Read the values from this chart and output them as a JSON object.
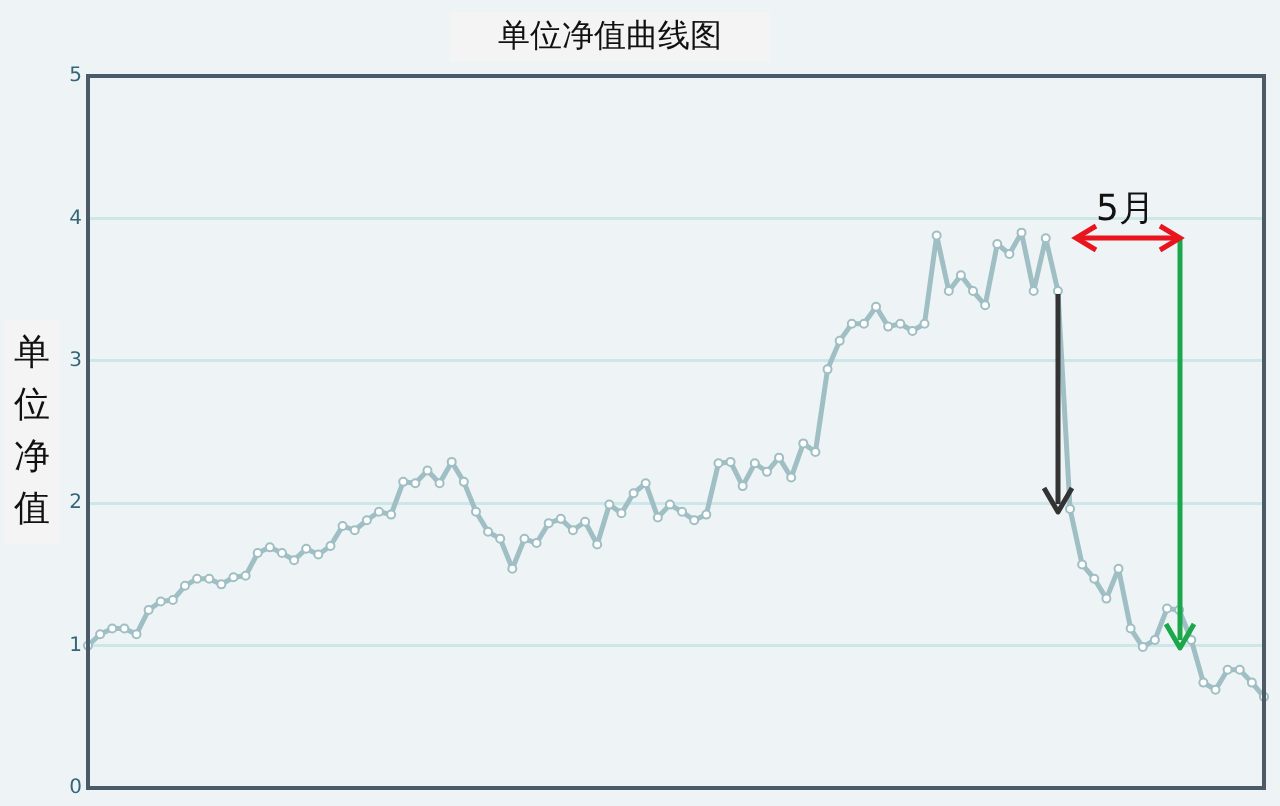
{
  "chart_data": {
    "type": "line",
    "title": "单位净值曲线图",
    "ylabel": "单位净值",
    "annotations": [
      "5月"
    ],
    "categories": [
      null,
      null,
      null,
      null,
      null,
      null,
      null,
      null,
      null,
      null,
      null,
      null,
      null,
      null,
      null,
      null,
      null,
      null,
      null,
      null,
      null,
      null,
      null,
      null,
      null,
      null,
      null,
      null,
      null,
      null,
      null,
      null,
      null,
      null,
      null,
      null,
      null,
      null,
      null,
      null,
      null,
      null,
      null,
      null,
      null,
      null,
      null,
      null,
      null,
      null,
      null,
      null,
      null,
      null,
      null,
      null,
      null,
      null,
      null,
      null,
      null,
      null,
      null,
      null,
      null,
      null,
      null,
      null,
      null,
      null,
      null,
      null,
      null,
      null,
      null,
      null,
      null,
      null,
      null,
      null,
      null,
      null,
      null,
      null,
      null,
      null,
      null,
      null,
      null,
      null,
      null,
      null,
      null,
      null,
      null,
      null,
      null,
      null
    ],
    "series": [
      {
        "color": "#9fbfc4",
        "values": [
          1.0,
          1.08,
          1.12,
          1.12,
          1.08,
          1.25,
          1.31,
          1.32,
          1.42,
          1.47,
          1.47,
          1.43,
          1.48,
          1.49,
          1.65,
          1.69,
          1.65,
          1.6,
          1.68,
          1.64,
          1.7,
          1.84,
          1.81,
          1.88,
          1.94,
          1.92,
          2.15,
          2.14,
          2.23,
          2.14,
          2.29,
          2.15,
          1.94,
          1.8,
          1.75,
          1.54,
          1.75,
          1.72,
          1.86,
          1.89,
          1.81,
          1.87,
          1.71,
          1.99,
          1.93,
          2.07,
          2.14,
          1.9,
          1.99,
          1.94,
          1.88,
          1.92,
          2.28,
          2.29,
          2.12,
          2.28,
          2.22,
          2.32,
          2.18,
          2.42,
          2.36,
          2.94,
          3.14,
          3.26,
          3.26,
          3.38,
          3.24,
          3.26,
          3.21,
          3.26,
          3.88,
          3.49,
          3.6,
          3.49,
          3.39,
          3.82,
          3.75,
          3.9,
          3.49,
          3.86,
          3.49,
          1.96,
          1.57,
          1.47,
          1.33,
          1.54,
          1.12,
          0.99,
          1.04,
          1.26,
          1.25,
          1.04,
          0.74,
          0.69,
          0.83,
          0.83,
          0.74,
          0.64
        ]
      }
    ],
    "ylim": [
      0,
      5
    ],
    "yticks": [
      0,
      1,
      2,
      3,
      4,
      5
    ],
    "grid": "y",
    "marker": "circle",
    "line_style": "solid",
    "tick_labels": "y",
    "legend": false
  }
}
